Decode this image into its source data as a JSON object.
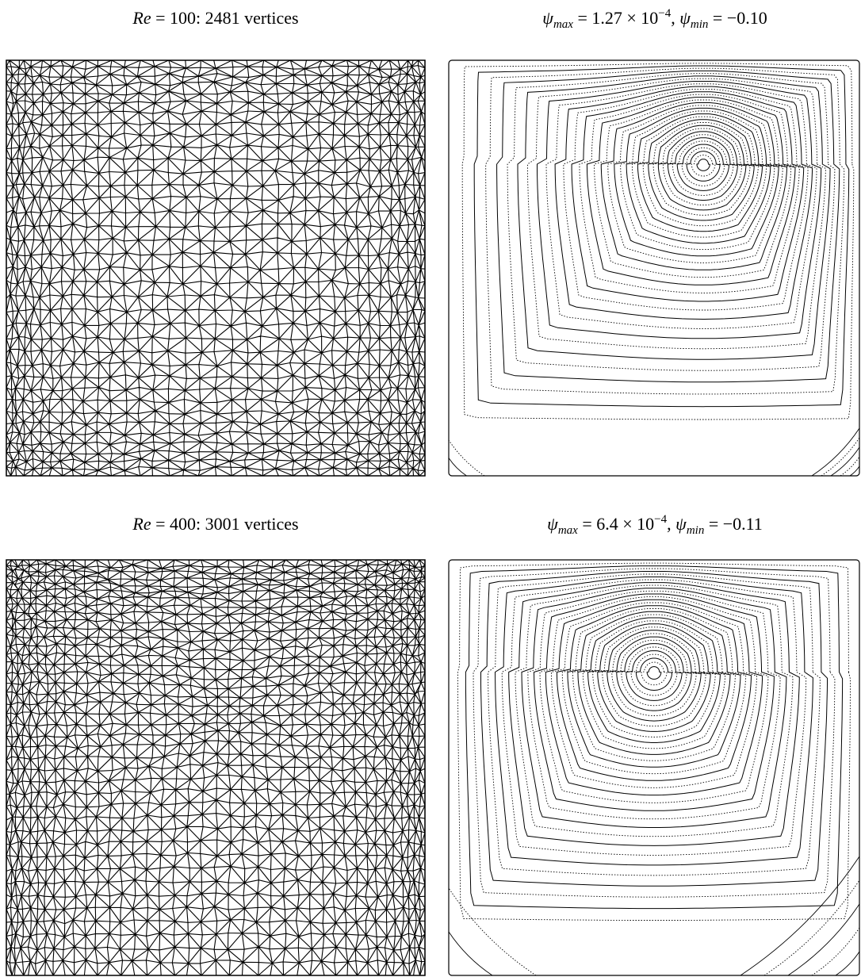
{
  "panels": [
    {
      "mesh_caption": {
        "parts": [
          "Re",
          " = 100: 2481 vertices"
        ]
      },
      "contour_caption": {
        "parts": [
          "ψ",
          "max",
          " = 1.27 × 10",
          "−4",
          ", ",
          "ψ",
          "min",
          " = −0.10"
        ]
      }
    },
    {
      "mesh_caption": {
        "parts": [
          "Re",
          " = 400: 3001 vertices"
        ]
      },
      "contour_caption": {
        "parts": [
          "ψ",
          "max",
          " = 6.4 × 10",
          "−4",
          ", ",
          "ψ",
          "min",
          " = −0.11"
        ]
      }
    }
  ]
}
